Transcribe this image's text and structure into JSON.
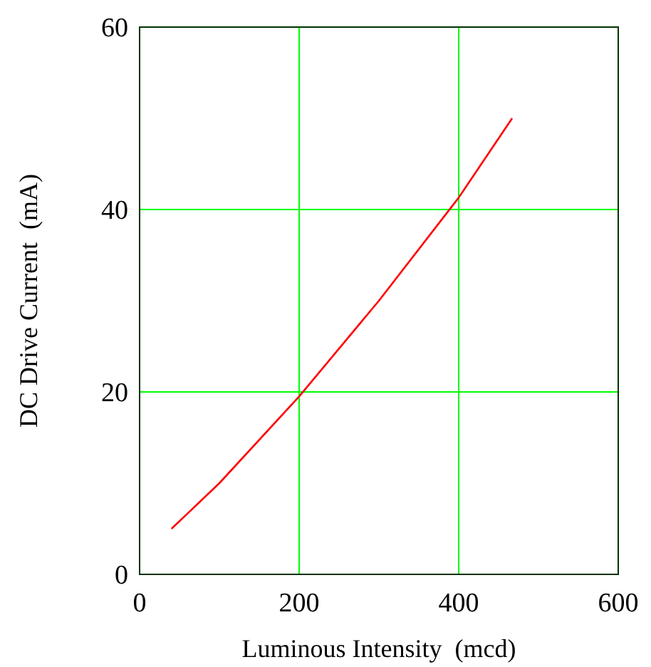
{
  "chart_data": {
    "type": "line",
    "xlabel": "Luminous Intensity  (mcd)",
    "ylabel": "DC Drive Current  (mA)",
    "x": [
      40,
      100,
      200,
      300,
      400,
      467
    ],
    "series": [
      {
        "color": "#ff0000",
        "values": [
          5,
          10,
          19.5,
          30,
          41.3,
          50
        ]
      }
    ],
    "xlim": [
      0,
      600
    ],
    "ylim": [
      0,
      60
    ],
    "xticks": [
      0,
      200,
      400,
      600
    ],
    "yticks": [
      0,
      20,
      40,
      60
    ],
    "grid": true,
    "marker": "none",
    "line_style": "solid"
  }
}
